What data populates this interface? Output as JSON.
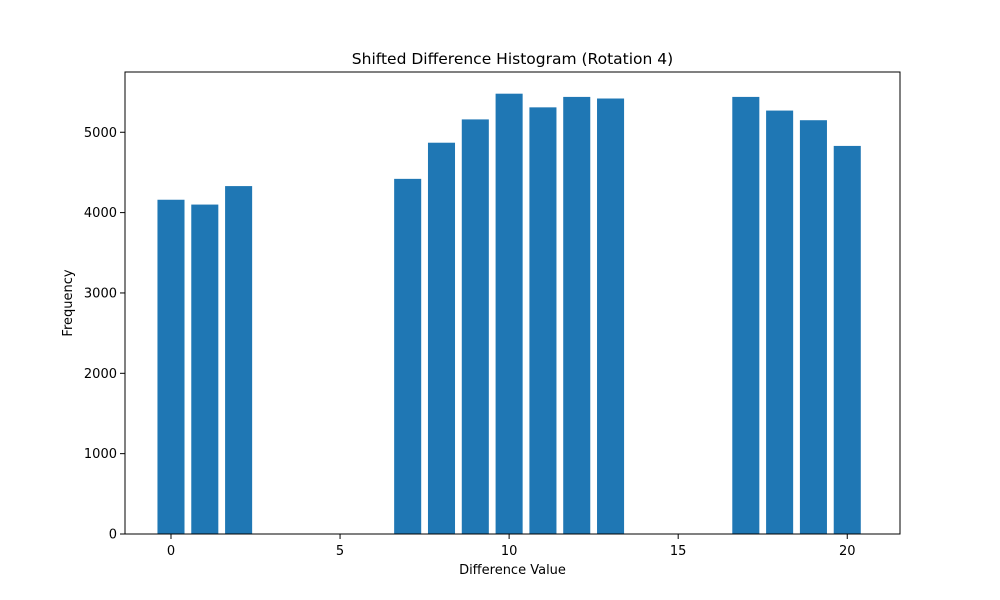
{
  "chart_data": {
    "type": "bar",
    "title": "Shifted Difference Histogram (Rotation 4)",
    "xlabel": "Difference Value",
    "ylabel": "Frequency",
    "bar_color": "#1f77b4",
    "x": [
      0,
      1,
      2,
      3,
      4,
      5,
      6,
      7,
      8,
      9,
      10,
      11,
      12,
      13,
      14,
      15,
      16,
      17,
      18,
      19,
      20
    ],
    "values": [
      4160,
      4100,
      4330,
      0,
      0,
      0,
      0,
      4420,
      4870,
      5160,
      5480,
      5310,
      5440,
      5420,
      0,
      0,
      0,
      5440,
      5270,
      5150,
      4830
    ],
    "xlim": [
      -1.36,
      21.56
    ],
    "ylim": [
      0,
      5750
    ],
    "xticks": [
      0,
      5,
      10,
      15,
      20
    ],
    "yticks": [
      0,
      1000,
      2000,
      3000,
      4000,
      5000
    ],
    "grid": false,
    "legend": "none"
  }
}
